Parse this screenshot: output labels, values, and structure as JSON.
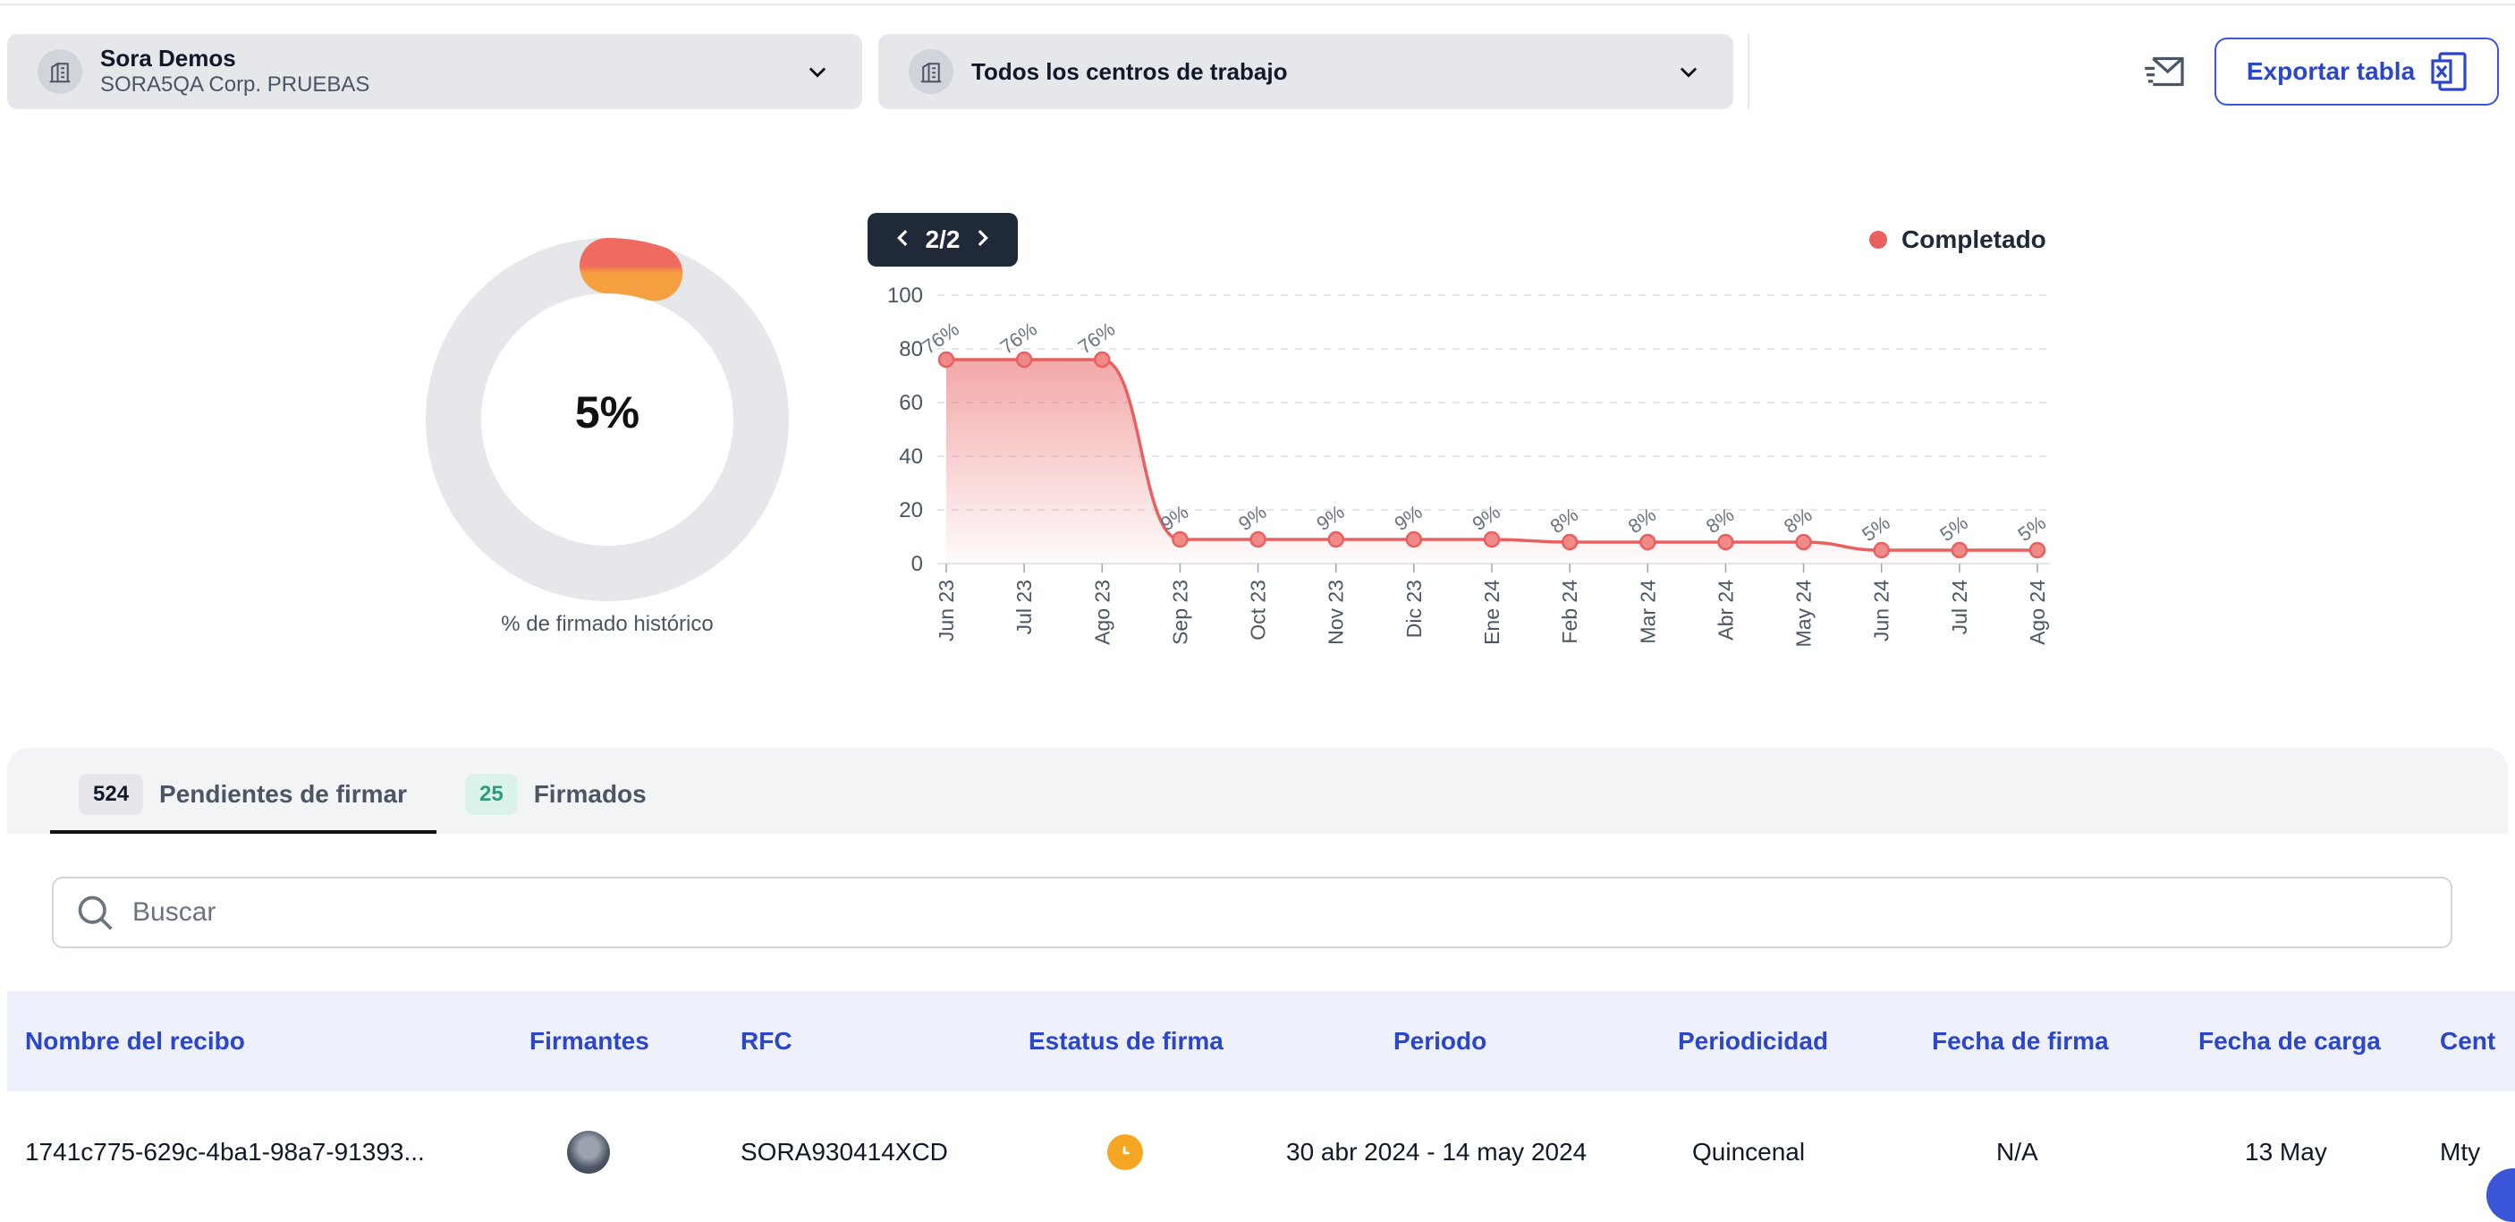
{
  "header": {
    "company_select": {
      "title": "Sora Demos",
      "subtitle": "SORA5QA Corp. PRUEBAS"
    },
    "workcenter_select": {
      "title": "Todos los centros de trabajo"
    },
    "export_label": "Exportar tabla"
  },
  "donut": {
    "value": 5,
    "value_label": "5%",
    "label": "% de firmado histórico",
    "colors": {
      "track": "#e5e7eb",
      "fill_start": "#f5a040",
      "fill_end": "#ef6b5f"
    }
  },
  "pager": {
    "label": "2/2"
  },
  "legend": {
    "label": "Completado",
    "color": "#e8605f"
  },
  "chart_data": {
    "type": "area",
    "x": [
      "Jun 23",
      "Jul 23",
      "Ago 23",
      "Sep 23",
      "Oct 23",
      "Nov 23",
      "Dic 23",
      "Ene 24",
      "Feb 24",
      "Mar 24",
      "Abr 24",
      "May 24",
      "Jun 24",
      "Jul 24",
      "Ago 24"
    ],
    "series": [
      {
        "name": "Completado",
        "values": [
          76,
          76,
          76,
          9,
          9,
          9,
          9,
          9,
          8,
          8,
          8,
          8,
          5,
          5,
          5
        ],
        "color": "#e8605f"
      }
    ],
    "data_labels": [
      "76%",
      "76%",
      "76%",
      "9%",
      "9%",
      "9%",
      "9%",
      "9%",
      "8%",
      "8%",
      "8%",
      "8%",
      "5%",
      "5%",
      "5%"
    ],
    "y_ticks": [
      "0",
      "20",
      "40",
      "60",
      "80",
      "100"
    ],
    "ylim": [
      0,
      100
    ],
    "grid": true,
    "legend_position": "top-right"
  },
  "tabs": [
    {
      "count": "524",
      "label": "Pendientes de firmar",
      "active": true
    },
    {
      "count": "25",
      "label": "Firmados",
      "active": false
    }
  ],
  "search": {
    "placeholder": "Buscar"
  },
  "table": {
    "headers": [
      "Nombre del recibo",
      "Firmantes",
      "RFC",
      "Estatus de firma",
      "Periodo",
      "Periodicidad",
      "Fecha de firma",
      "Fecha de carga",
      "Cent"
    ],
    "rows": [
      {
        "name": "1741c775-629c-4ba1-98a7-91393...",
        "rfc": "SORA930414XCD",
        "period": "30 abr 2024 - 14 may 2024",
        "periodicity": "Quincenal",
        "sign_date": "N/A",
        "upload_date": "13 May",
        "center": "Mty"
      }
    ]
  }
}
